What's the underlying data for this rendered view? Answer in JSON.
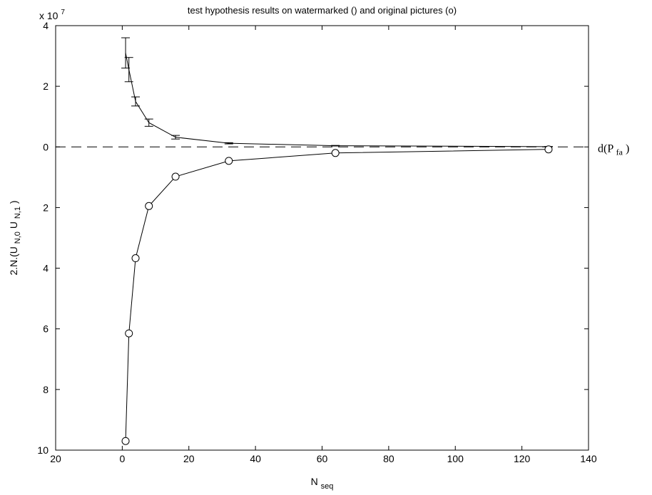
{
  "chart_data": {
    "type": "line",
    "title": "test hypothesis results on watermarked () and original pictures (o)",
    "exponent_label": "x 10",
    "exponent_power": "7",
    "xlabel": {
      "main": "N",
      "sub": "seq"
    },
    "ylabel": {
      "p1": "2.N.(U",
      "s1": "N,0",
      "p2": "U",
      "s2": "N,1",
      "p3": ")"
    },
    "xlim": [
      -20,
      140
    ],
    "ylim": [
      -10,
      4
    ],
    "x_ticks": [
      -20,
      0,
      20,
      40,
      60,
      80,
      100,
      120,
      140
    ],
    "x_tick_labels": [
      "20",
      "0",
      "20",
      "40",
      "60",
      "80",
      "100",
      "120",
      "140"
    ],
    "y_ticks": [
      4,
      2,
      0,
      -2,
      -4,
      -6,
      -8,
      -10
    ],
    "y_tick_labels": [
      "4",
      "2",
      "0",
      "2",
      "4",
      "6",
      "8",
      "10"
    ],
    "grid": false,
    "series": [
      {
        "marker": "errorbar",
        "x": [
          1,
          2,
          4,
          8,
          16,
          32,
          64,
          128
        ],
        "y": [
          3.1,
          2.55,
          1.5,
          0.8,
          0.32,
          0.12,
          0.04,
          0.01
        ],
        "err": [
          0.5,
          0.4,
          0.15,
          0.12,
          0.06,
          0.02,
          0.01,
          0.005
        ]
      },
      {
        "marker": "circle",
        "x": [
          1,
          2,
          4,
          8,
          16,
          32,
          64,
          128
        ],
        "y": [
          -9.7,
          -6.15,
          -3.67,
          -1.95,
          -0.98,
          -0.46,
          -0.2,
          -0.08
        ]
      }
    ],
    "threshold": {
      "y": 0,
      "style": "dashed",
      "label": {
        "main": "d(P",
        "sub": "fa",
        "close": ")"
      }
    }
  }
}
